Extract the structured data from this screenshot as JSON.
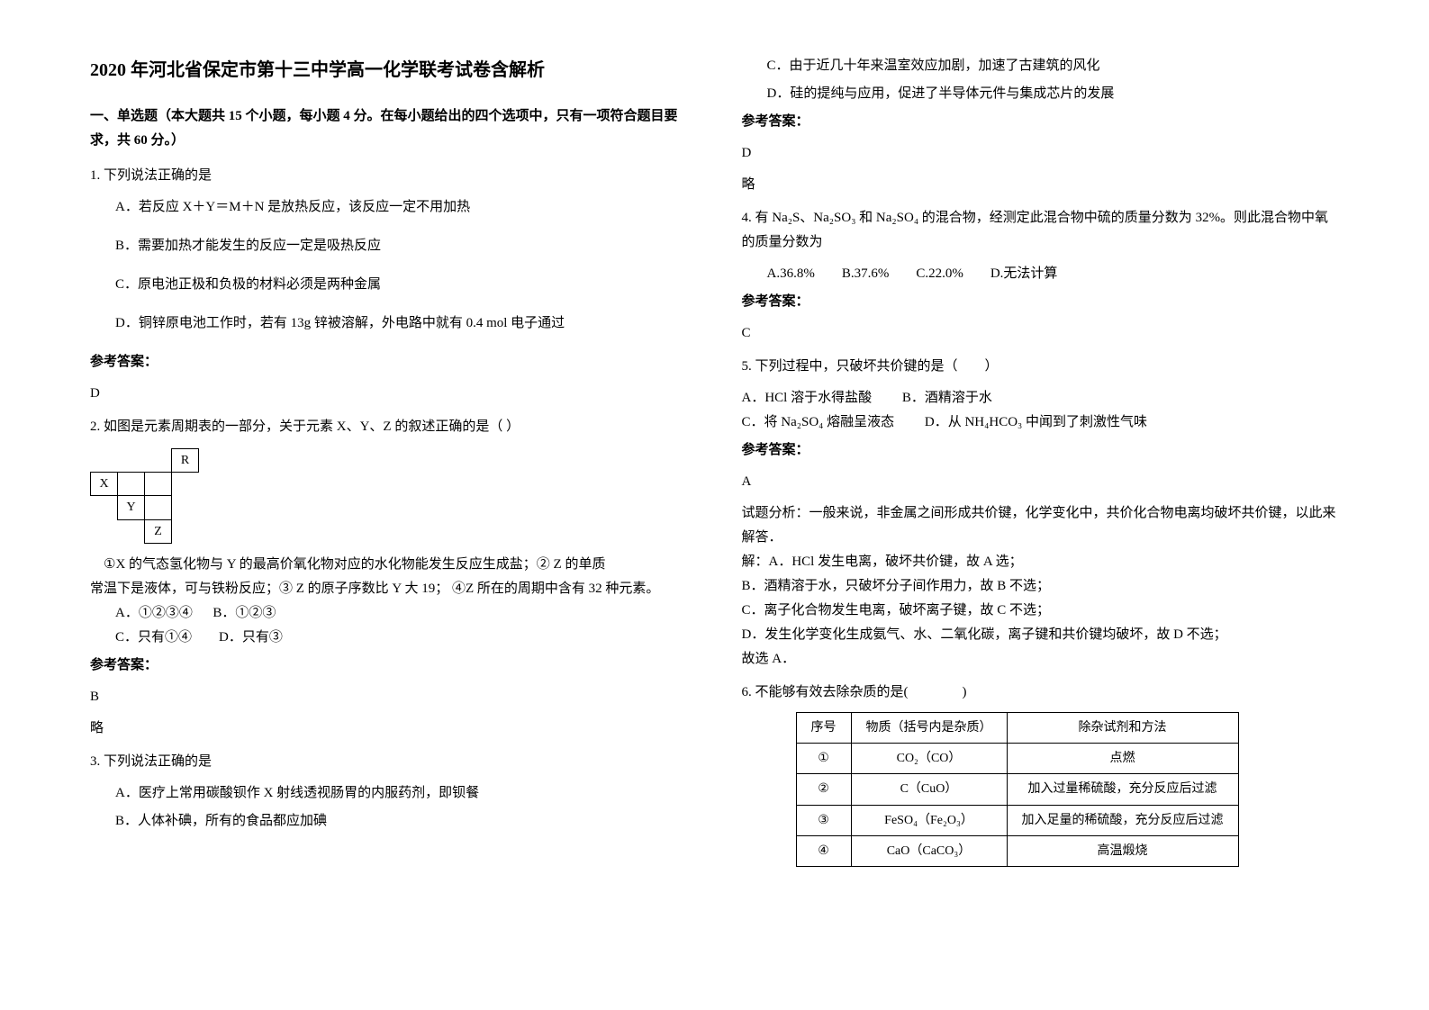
{
  "title": "2020 年河北省保定市第十三中学高一化学联考试卷含解析",
  "section1": {
    "heading": "一、单选题（本大题共 15 个小题，每小题 4 分。在每小题给出的四个选项中，只有一项符合题目要求，共 60 分。）"
  },
  "q1": {
    "stem": "1. 下列说法正确的是",
    "optA": "A．若反应 X＋Y＝M＋N 是放热反应，该反应一定不用加热",
    "optB": "B．需要加热才能发生的反应一定是吸热反应",
    "optC": "C．原电池正极和负极的材料必须是两种金属",
    "optD": "D．铜锌原电池工作时，若有 13g 锌被溶解，外电路中就有 0.4 mol 电子通过",
    "answerLabel": "参考答案：",
    "answer": "D"
  },
  "q2": {
    "stem": "2. 如图是元素周期表的一部分，关于元素 X、Y、Z 的叙述正确的是（  ）",
    "cellR": "R",
    "cellX": "X",
    "cellY": "Y",
    "cellZ": "Z",
    "body1": "①X 的气态氢化物与 Y 的最高价氧化物对应的水化物能发生反应生成盐；② Z 的单质",
    "body2": " 常温下是液体，可与铁粉反应；③ Z 的原子序数比 Y 大 19； ④Z 所在的周期中含有 32 种元素。",
    "optA": "A．①②③④",
    "optB": "B．①②③",
    "optC": "C．只有①④",
    "optD": "D．只有③",
    "answerLabel": "参考答案：",
    "answer": "B",
    "note": "略"
  },
  "q3": {
    "stem": "3. 下列说法正确的是",
    "optA": "A．医疗上常用碳酸钡作 X 射线透视肠胃的内服药剂，即钡餐",
    "optB": "B．人体补碘，所有的食品都应加碘",
    "optC": "C．由于近几十年来温室效应加剧，加速了古建筑的风化",
    "optD": "D．硅的提纯与应用，促进了半导体元件与集成芯片的发展",
    "answerLabel": "参考答案：",
    "answer": "D",
    "note": "略"
  },
  "q4": {
    "stem": "4. 有 Na₂S、Na₂SO₃ 和 Na₂SO₄ 的混合物，经测定此混合物中硫的质量分数为 32%。则此混合物中氧的质量分数为",
    "options": "A.36.8%　　B.37.6%　　C.22.0%　　D.无法计算",
    "answerLabel": "参考答案：",
    "answer": "C"
  },
  "q5": {
    "stem": "5. 下列过程中，只破坏共价键的是（　　）",
    "optA": "A．HCl 溶于水得盐酸",
    "optB": "B．酒精溶于水",
    "optC": "C．将 Na₂SO₄ 熔融呈液态",
    "optD": "D．从 NH₄HCO₃ 中闻到了刺激性气味",
    "answerLabel": "参考答案：",
    "answer": "A",
    "analysis1": "试题分析：一般来说，非金属之间形成共价键，化学变化中，共价化合物电离均破坏共价键，以此来解答．",
    "analysis2": "解：A．HCl 发生电离，破坏共价键，故 A 选；",
    "analysis3": "B．酒精溶于水，只破坏分子间作用力，故 B 不选；",
    "analysis4": "C．离子化合物发生电离，破坏离子键，故 C 不选；",
    "analysis5": "D．发生化学变化生成氨气、水、二氧化碳，离子键和共价键均破坏，故 D 不选；",
    "analysis6": "故选 A．"
  },
  "q6": {
    "stem": "6. 不能够有效去除杂质的是(　　　　)",
    "table": {
      "headers": [
        "序号",
        "物质（括号内是杂质）",
        "除杂试剂和方法"
      ],
      "rows": [
        [
          "①",
          "CO₂（CO）",
          "点燃"
        ],
        [
          "②",
          "C（CuO）",
          "加入过量稀硫酸，充分反应后过滤"
        ],
        [
          "③",
          "FeSO₄（Fe₂O₃）",
          "加入足量的稀硫酸，充分反应后过滤"
        ],
        [
          "④",
          "CaO（CaCO₃）",
          "高温煅烧"
        ]
      ]
    }
  }
}
